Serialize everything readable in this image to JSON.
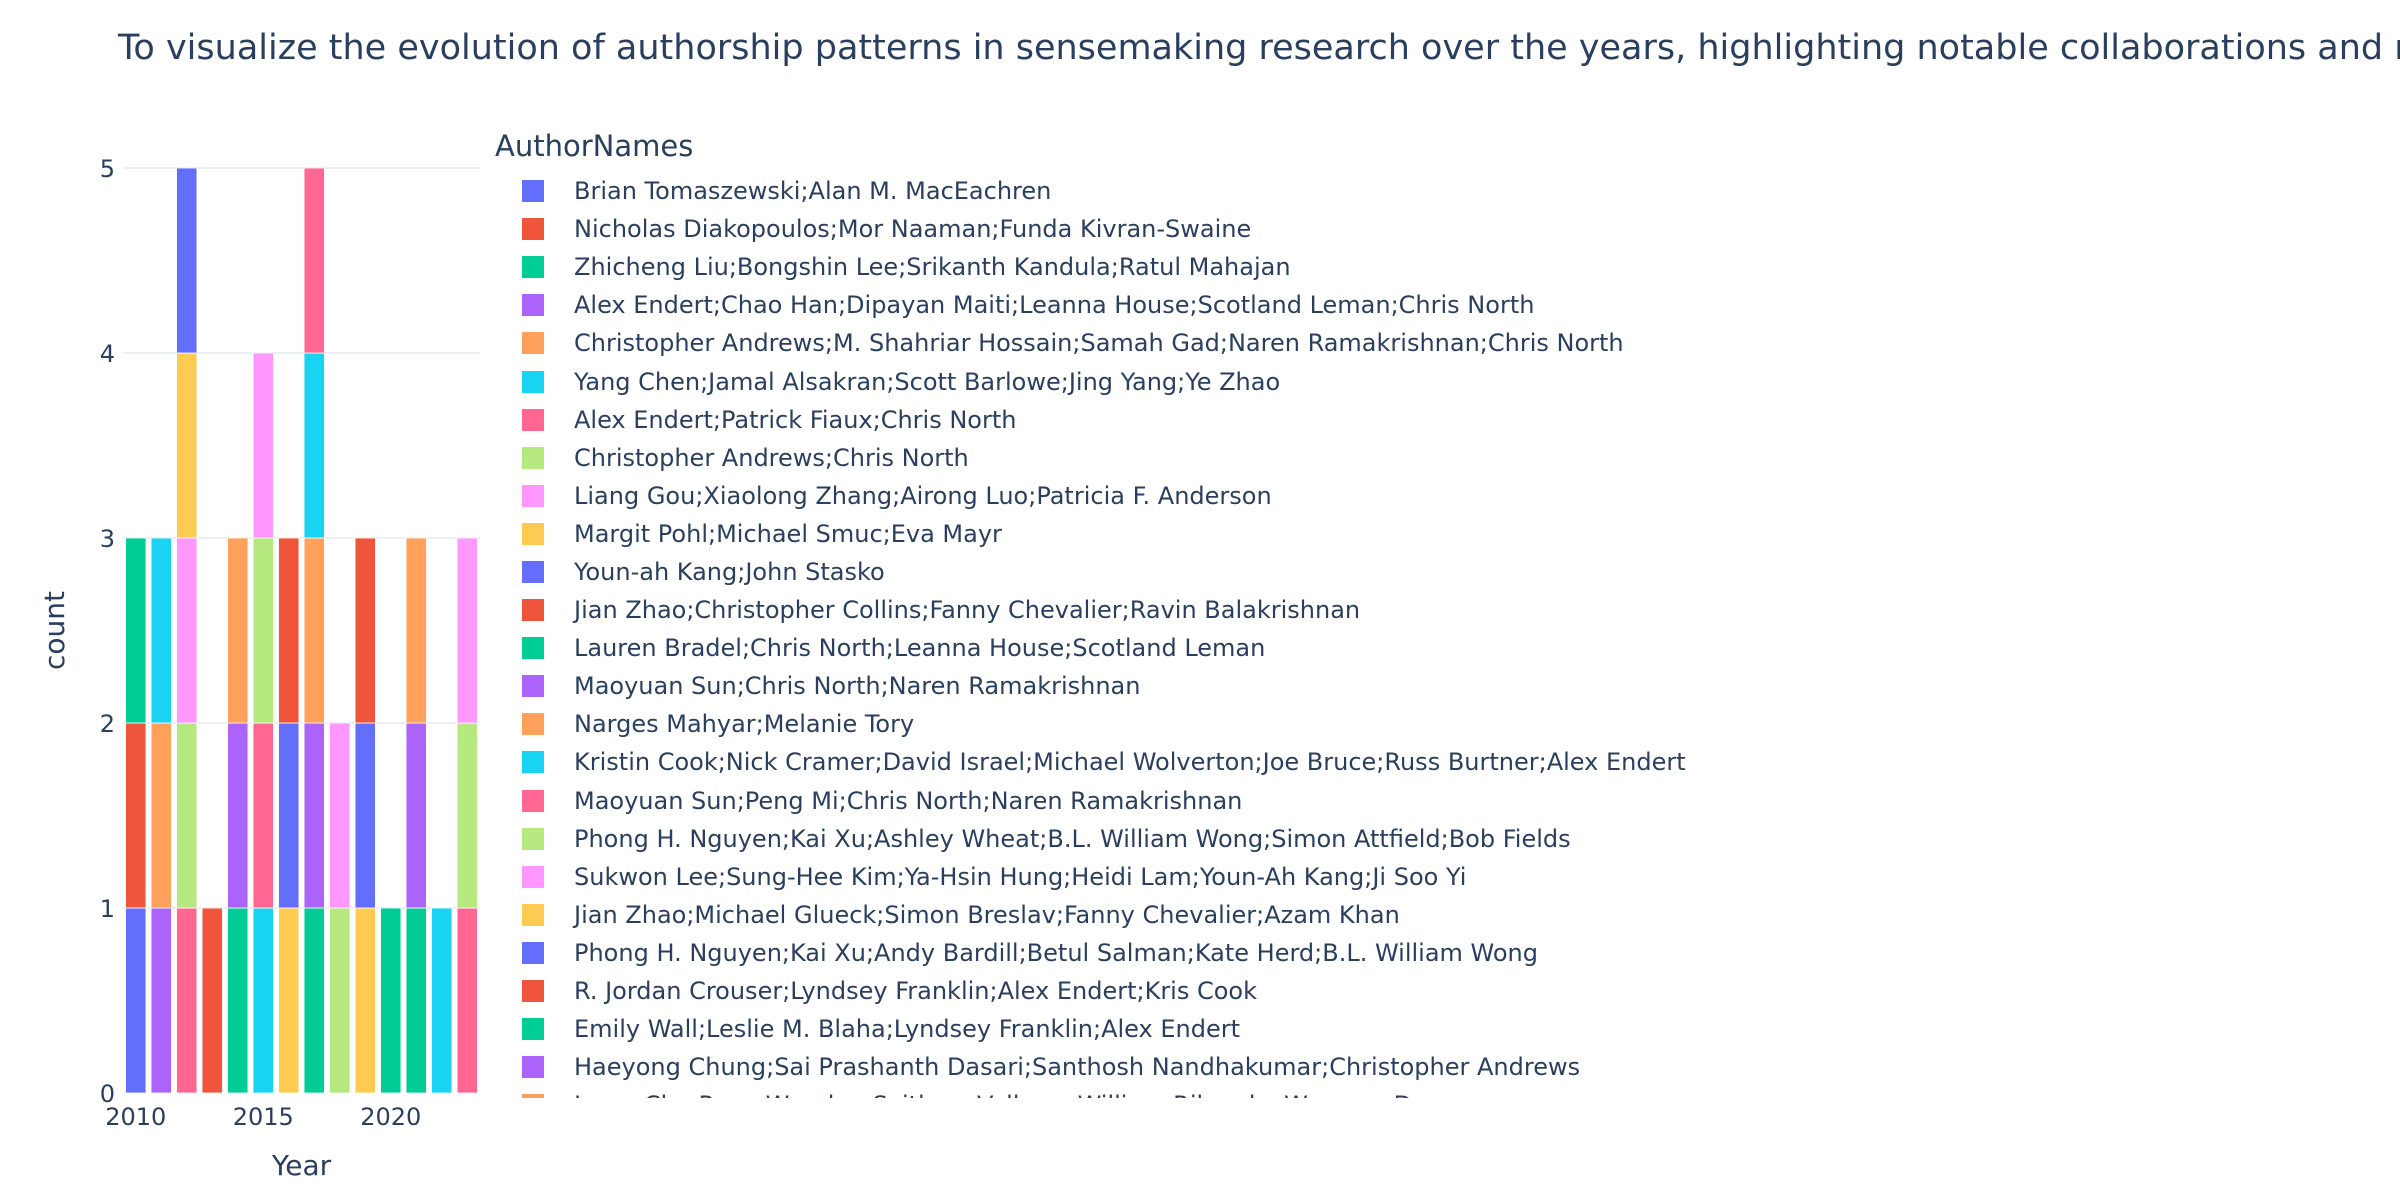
{
  "title": "To visualize the evolution of authorship patterns in sensemaking research over the years, highlighting notable collaborations and recu",
  "chart_data": {
    "type": "bar",
    "barmode": "stack",
    "xlabel": "Year",
    "ylabel": "count",
    "legend_title": "AuthorNames",
    "legend_position": "right",
    "xlim": [
      2009.5,
      2023.5
    ],
    "ylim": [
      0,
      5
    ],
    "xticks": [
      2010,
      2015,
      2020
    ],
    "yticks": [
      0,
      1,
      2,
      3,
      4,
      5
    ],
    "grid": true,
    "palette": [
      "#636efa",
      "#EF553B",
      "#00cc96",
      "#ab63fa",
      "#FFA15A",
      "#19d3f3",
      "#FF6692",
      "#B6E880",
      "#FF97FF",
      "#FECB52"
    ],
    "series": [
      {
        "name": "Brian Tomaszewski;Alan M. MacEachren",
        "color": "#636efa",
        "points": [
          [
            2010,
            1
          ]
        ]
      },
      {
        "name": "Nicholas Diakopoulos;Mor Naaman;Funda Kivran-Swaine",
        "color": "#EF553B",
        "points": [
          [
            2010,
            1
          ]
        ]
      },
      {
        "name": "Zhicheng Liu;Bongshin Lee;Srikanth Kandula;Ratul Mahajan",
        "color": "#00cc96",
        "points": [
          [
            2010,
            1
          ]
        ]
      },
      {
        "name": "Alex Endert;Chao Han;Dipayan Maiti;Leanna House;Scotland Leman;Chris North",
        "color": "#ab63fa",
        "points": [
          [
            2011,
            1
          ]
        ]
      },
      {
        "name": "Christopher Andrews;M. Shahriar Hossain;Samah Gad;Naren Ramakrishnan;Chris North",
        "color": "#FFA15A",
        "points": [
          [
            2011,
            1
          ]
        ]
      },
      {
        "name": "Yang Chen;Jamal Alsakran;Scott Barlowe;Jing Yang;Ye Zhao",
        "color": "#19d3f3",
        "points": [
          [
            2011,
            1
          ]
        ]
      },
      {
        "name": "Alex Endert;Patrick Fiaux;Chris North",
        "color": "#FF6692",
        "points": [
          [
            2012,
            1
          ]
        ]
      },
      {
        "name": "Christopher Andrews;Chris North",
        "color": "#B6E880",
        "points": [
          [
            2012,
            1
          ]
        ]
      },
      {
        "name": "Liang Gou;Xiaolong Zhang;Airong Luo;Patricia F. Anderson",
        "color": "#FF97FF",
        "points": [
          [
            2012,
            1
          ]
        ]
      },
      {
        "name": "Margit Pohl;Michael Smuc;Eva Mayr",
        "color": "#FECB52",
        "points": [
          [
            2012,
            1
          ]
        ]
      },
      {
        "name": "Youn-ah Kang;John Stasko",
        "color": "#636efa",
        "points": [
          [
            2012,
            1
          ]
        ]
      },
      {
        "name": "Jian Zhao;Christopher Collins;Fanny Chevalier;Ravin Balakrishnan",
        "color": "#EF553B",
        "points": [
          [
            2013,
            1
          ]
        ]
      },
      {
        "name": "Lauren Bradel;Chris North;Leanna House;Scotland Leman",
        "color": "#00cc96",
        "points": [
          [
            2014,
            1
          ]
        ]
      },
      {
        "name": "Maoyuan Sun;Chris North;Naren Ramakrishnan",
        "color": "#ab63fa",
        "points": [
          [
            2014,
            1
          ]
        ]
      },
      {
        "name": "Narges Mahyar;Melanie Tory",
        "color": "#FFA15A",
        "points": [
          [
            2014,
            1
          ]
        ]
      },
      {
        "name": "Kristin Cook;Nick Cramer;David Israel;Michael Wolverton;Joe Bruce;Russ Burtner;Alex Endert",
        "color": "#19d3f3",
        "points": [
          [
            2015,
            1
          ]
        ]
      },
      {
        "name": "Maoyuan Sun;Peng Mi;Chris North;Naren Ramakrishnan",
        "color": "#FF6692",
        "points": [
          [
            2015,
            1
          ]
        ]
      },
      {
        "name": "Phong H. Nguyen;Kai Xu;Ashley Wheat;B.L. William Wong;Simon Attfield;Bob Fields",
        "color": "#B6E880",
        "points": [
          [
            2015,
            1
          ]
        ]
      },
      {
        "name": "Sukwon Lee;Sung-Hee Kim;Ya-Hsin Hung;Heidi Lam;Youn-Ah Kang;Ji Soo Yi",
        "color": "#FF97FF",
        "points": [
          [
            2015,
            1
          ]
        ]
      },
      {
        "name": "Jian Zhao;Michael Glueck;Simon Breslav;Fanny Chevalier;Azam Khan",
        "color": "#FECB52",
        "points": [
          [
            2016,
            1
          ]
        ]
      },
      {
        "name": "Phong H. Nguyen;Kai Xu;Andy Bardill;Betul Salman;Kate Herd;B.L. William Wong",
        "color": "#636efa",
        "points": [
          [
            2016,
            1
          ]
        ]
      },
      {
        "name": "R. Jordan Crouser;Lyndsey Franklin;Alex Endert;Kris Cook",
        "color": "#EF553B",
        "points": [
          [
            2016,
            1
          ]
        ]
      },
      {
        "name": "Emily Wall;Leslie M. Blaha;Lyndsey Franklin;Alex Endert",
        "color": "#00cc96",
        "points": [
          [
            2017,
            1
          ]
        ]
      },
      {
        "name": "Haeyong Chung;Sai Prashanth Dasari;Santhosh Nandhakumar;Christopher Andrews",
        "color": "#ab63fa",
        "points": [
          [
            2017,
            1
          ]
        ]
      },
      {
        "name": "Isaac Cho;Ryan Wesslen;Svitlana Volkova;William Ribarsky;Wenwen Dou",
        "color": "#FFA15A",
        "points": [
          [
            2017,
            1
          ]
        ]
      },
      {
        "name": "",
        "color": "#19d3f3",
        "points": [
          [
            2017,
            1
          ],
          [
            2022,
            1
          ]
        ]
      },
      {
        "name": "",
        "color": "#FF6692",
        "points": [
          [
            2017,
            1
          ],
          [
            2023,
            1
          ]
        ]
      },
      {
        "name": "",
        "color": "#B6E880",
        "points": [
          [
            2018,
            1
          ],
          [
            2023,
            1
          ]
        ]
      },
      {
        "name": "",
        "color": "#FF97FF",
        "points": [
          [
            2018,
            1
          ],
          [
            2023,
            1
          ]
        ]
      },
      {
        "name": "",
        "color": "#FECB52",
        "points": [
          [
            2019,
            1
          ]
        ]
      },
      {
        "name": "",
        "color": "#636efa",
        "points": [
          [
            2019,
            1
          ]
        ]
      },
      {
        "name": "",
        "color": "#EF553B",
        "points": [
          [
            2019,
            1
          ]
        ]
      },
      {
        "name": "",
        "color": "#00cc96",
        "points": [
          [
            2020,
            1
          ]
        ]
      },
      {
        "name": "",
        "color": "#00cc96",
        "points": [
          [
            2021,
            1
          ]
        ]
      },
      {
        "name": "",
        "color": "#ab63fa",
        "points": [
          [
            2021,
            1
          ]
        ]
      },
      {
        "name": "",
        "color": "#FFA15A",
        "points": [
          [
            2021,
            1
          ]
        ]
      }
    ]
  }
}
